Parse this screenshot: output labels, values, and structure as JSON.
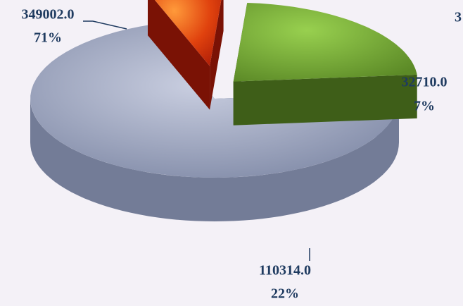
{
  "chart_data": {
    "type": "pie3d",
    "categories": [
      null,
      null,
      null
    ],
    "values": [
      349002,
      32710,
      110314
    ],
    "value_labels": [
      "349002.0",
      "32710.0",
      "110314.0"
    ],
    "percent_labels": [
      "71%",
      "7%",
      "22%"
    ],
    "colors": [
      "#8b94ae",
      "#d8400f",
      "#6f9e32"
    ],
    "annotation": "3"
  }
}
